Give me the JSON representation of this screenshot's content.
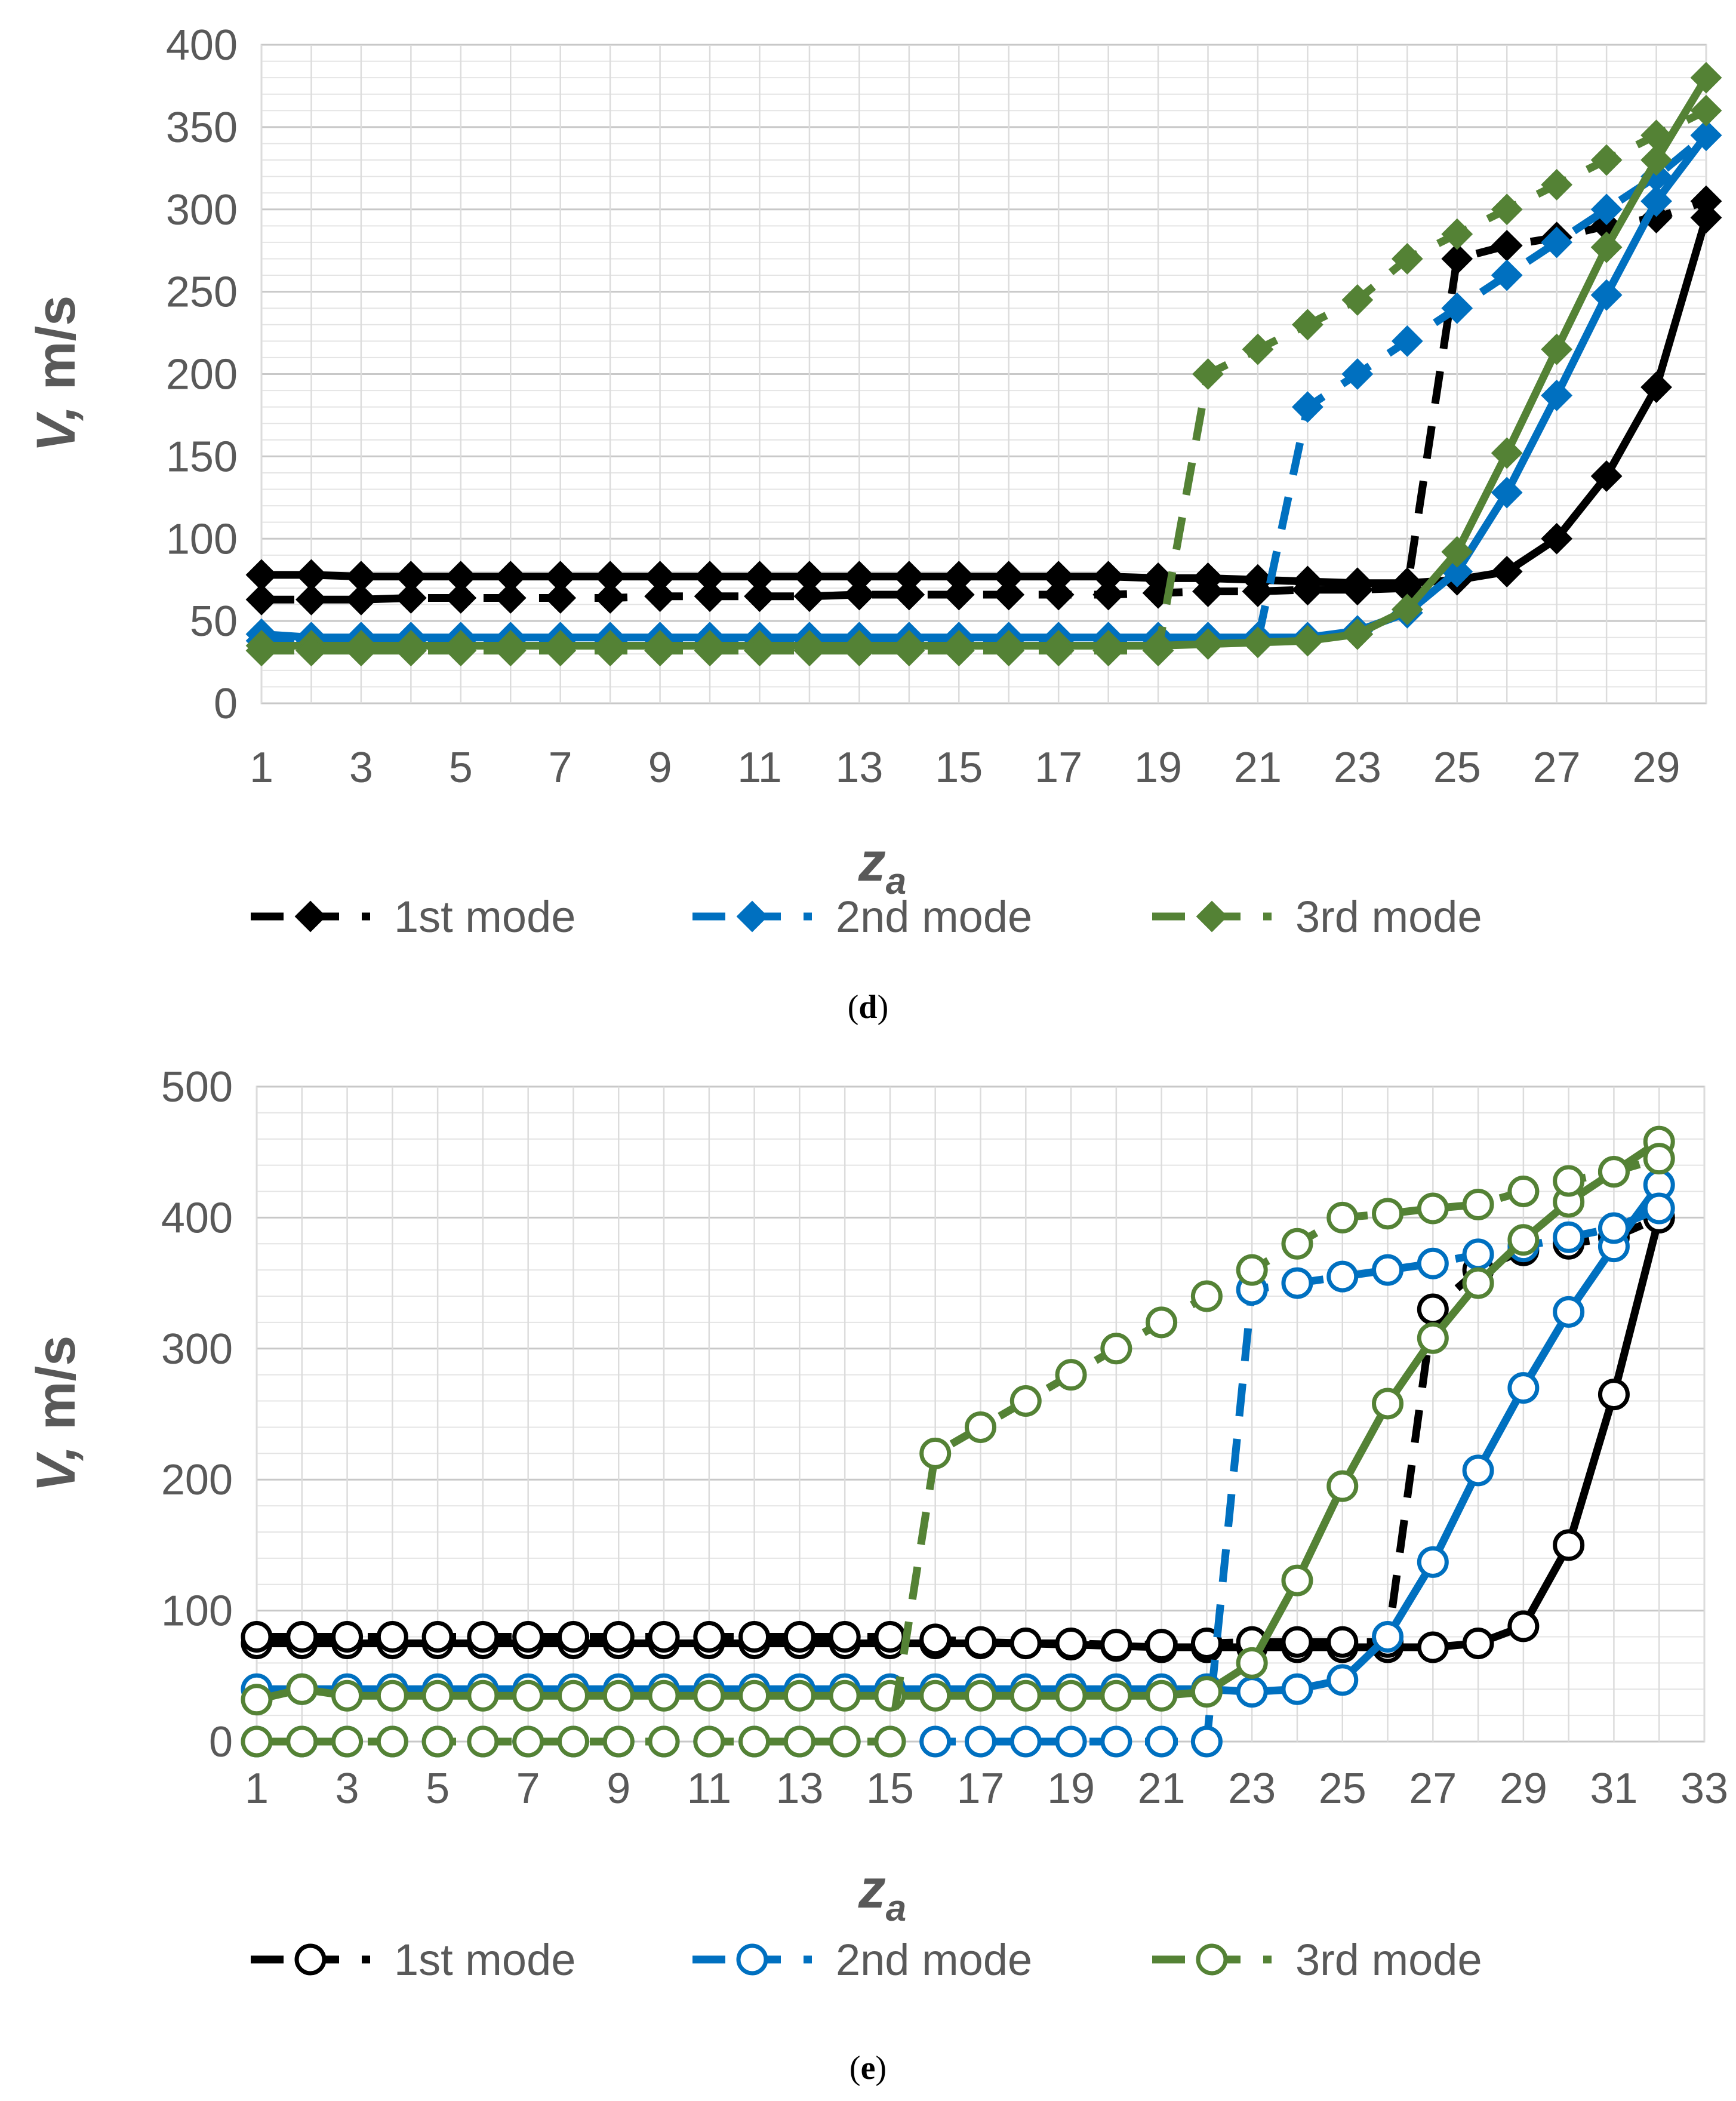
{
  "chart_data": [
    {
      "type": "line",
      "caption": "(d)",
      "xlabel": "z",
      "xlabel_sub": "a",
      "ylabel": "V, m/s",
      "xlim": [
        1,
        30
      ],
      "ylim": [
        0,
        400
      ],
      "ytick_step": 50,
      "xtick_labels": [
        "1",
        "3",
        "5",
        "7",
        "9",
        "11",
        "13",
        "15",
        "17",
        "19",
        "21",
        "23",
        "25",
        "27",
        "29"
      ],
      "marker": "diamond",
      "legend": [
        "1st mode",
        "2nd mode",
        "3rd mode"
      ],
      "series": [
        {
          "name": "1st mode",
          "mode": "1st mode",
          "style": "solid",
          "color": "#000000",
          "x": [
            1,
            2,
            3,
            4,
            5,
            6,
            7,
            8,
            9,
            10,
            11,
            12,
            13,
            14,
            15,
            16,
            17,
            18,
            19,
            20,
            21,
            22,
            23,
            24,
            25,
            26,
            27,
            28,
            29,
            30
          ],
          "y": [
            78,
            78,
            77,
            77,
            77,
            77,
            77,
            77,
            77,
            77,
            77,
            77,
            77,
            77,
            77,
            77,
            77,
            77,
            76,
            76,
            75,
            74,
            73,
            73,
            75,
            80,
            100,
            138,
            192,
            295
          ]
        },
        {
          "name": "1st mode",
          "mode": "1st mode",
          "style": "dashed",
          "color": "#000000",
          "x": [
            1,
            2,
            3,
            4,
            5,
            6,
            7,
            8,
            9,
            10,
            11,
            12,
            13,
            14,
            15,
            16,
            17,
            18,
            19,
            20,
            21,
            22,
            23,
            24,
            25,
            26,
            27,
            28,
            29,
            30
          ],
          "y": [
            63,
            63,
            63,
            64,
            64,
            64,
            64,
            64,
            65,
            65,
            65,
            65,
            66,
            66,
            66,
            66,
            66,
            66,
            67,
            68,
            68,
            69,
            69,
            70,
            270,
            278,
            283,
            290,
            295,
            305
          ]
        },
        {
          "name": "2nd mode",
          "mode": "2nd mode",
          "style": "solid",
          "color": "#0070C0",
          "x": [
            1,
            2,
            3,
            4,
            5,
            6,
            7,
            8,
            9,
            10,
            11,
            12,
            13,
            14,
            15,
            16,
            17,
            18,
            19,
            20,
            21,
            22,
            23,
            24,
            25,
            26,
            27,
            28,
            29,
            30
          ],
          "y": [
            42,
            40,
            40,
            40,
            40,
            40,
            40,
            40,
            40,
            40,
            40,
            40,
            40,
            40,
            40,
            40,
            40,
            40,
            40,
            40,
            40,
            40,
            44,
            55,
            80,
            128,
            187,
            248,
            305,
            345
          ]
        },
        {
          "name": "2nd mode",
          "mode": "2nd mode",
          "style": "dashed",
          "color": "#0070C0",
          "x": [
            1,
            2,
            3,
            4,
            5,
            6,
            7,
            8,
            9,
            10,
            11,
            12,
            13,
            14,
            15,
            16,
            17,
            18,
            19,
            20,
            21,
            22,
            23,
            24,
            25,
            26,
            27,
            28,
            29,
            30
          ],
          "y": [
            38,
            38,
            38,
            38,
            38,
            38,
            38,
            38,
            38,
            38,
            38,
            38,
            38,
            38,
            38,
            38,
            38,
            38,
            38,
            38,
            38,
            180,
            200,
            220,
            240,
            260,
            280,
            300,
            320,
            345
          ]
        },
        {
          "name": "3rd mode",
          "mode": "3rd mode",
          "style": "solid",
          "color": "#548235",
          "x": [
            1,
            2,
            3,
            4,
            5,
            6,
            7,
            8,
            9,
            10,
            11,
            12,
            13,
            14,
            15,
            16,
            17,
            18,
            19,
            20,
            21,
            22,
            23,
            24,
            25,
            26,
            27,
            28,
            29,
            30
          ],
          "y": [
            35,
            35,
            35,
            35,
            35,
            35,
            35,
            35,
            35,
            35,
            35,
            35,
            35,
            35,
            35,
            35,
            35,
            35,
            35,
            36,
            37,
            38,
            42,
            57,
            92,
            152,
            215,
            277,
            330,
            380
          ]
        },
        {
          "name": "3rd mode",
          "mode": "3rd mode",
          "style": "dashed",
          "color": "#548235",
          "x": [
            1,
            2,
            3,
            4,
            5,
            6,
            7,
            8,
            9,
            10,
            11,
            12,
            13,
            14,
            15,
            16,
            17,
            18,
            19,
            20,
            21,
            22,
            23,
            24,
            25,
            26,
            27,
            28,
            29,
            30
          ],
          "y": [
            32,
            32,
            32,
            32,
            32,
            32,
            32,
            32,
            32,
            32,
            32,
            32,
            32,
            32,
            32,
            32,
            32,
            32,
            32,
            200,
            215,
            230,
            245,
            270,
            285,
            300,
            315,
            330,
            345,
            360
          ]
        }
      ]
    },
    {
      "type": "line",
      "caption": "(e)",
      "xlabel": "z",
      "xlabel_sub": "a",
      "ylabel": "V, m/s",
      "xlim": [
        1,
        33
      ],
      "ylim": [
        0,
        500
      ],
      "ytick_step": 100,
      "xtick_labels": [
        "1",
        "3",
        "5",
        "7",
        "9",
        "11",
        "13",
        "15",
        "17",
        "19",
        "21",
        "23",
        "25",
        "27",
        "29",
        "31",
        "33"
      ],
      "marker": "circle",
      "legend": [
        "1st mode",
        "2nd mode",
        "3rd mode"
      ],
      "series": [
        {
          "name": "1st mode",
          "mode": "1st mode",
          "style": "solid",
          "color": "#000000",
          "x": [
            1,
            2,
            3,
            4,
            5,
            6,
            7,
            8,
            9,
            10,
            11,
            12,
            13,
            14,
            15,
            16,
            17,
            18,
            19,
            20,
            21,
            22,
            23,
            24,
            25,
            26,
            27,
            28,
            29,
            30,
            31,
            32
          ],
          "y": [
            75,
            75,
            75,
            75,
            75,
            75,
            75,
            75,
            75,
            75,
            75,
            75,
            75,
            75,
            75,
            75,
            75,
            75,
            74,
            73,
            72,
            72,
            72,
            72,
            72,
            72,
            72,
            75,
            88,
            150,
            265,
            400
          ]
        },
        {
          "name": "1st mode",
          "mode": "1st mode",
          "style": "dashed",
          "color": "#000000",
          "x": [
            1,
            2,
            3,
            4,
            5,
            6,
            7,
            8,
            9,
            10,
            11,
            12,
            13,
            14,
            15,
            16,
            17,
            18,
            19,
            20,
            21,
            22,
            23,
            24,
            25,
            26,
            27,
            28,
            29,
            30,
            31,
            32
          ],
          "y": [
            80,
            80,
            80,
            80,
            80,
            80,
            80,
            80,
            80,
            80,
            80,
            80,
            80,
            80,
            80,
            78,
            76,
            75,
            75,
            74,
            74,
            75,
            76,
            76,
            76,
            76,
            330,
            360,
            375,
            380,
            385,
            400
          ]
        },
        {
          "name": "2nd mode",
          "mode": "2nd mode",
          "style": "solid",
          "color": "#0070C0",
          "x": [
            1,
            2,
            3,
            4,
            5,
            6,
            7,
            8,
            9,
            10,
            11,
            12,
            13,
            14,
            15,
            16,
            17,
            18,
            19,
            20,
            21,
            22,
            23,
            24,
            25,
            26,
            27,
            28,
            29,
            30,
            31,
            32
          ],
          "y": [
            40,
            40,
            40,
            40,
            40,
            40,
            40,
            40,
            40,
            40,
            40,
            40,
            40,
            40,
            40,
            40,
            40,
            40,
            40,
            40,
            40,
            40,
            38,
            40,
            47,
            80,
            137,
            207,
            270,
            328,
            378,
            425
          ]
        },
        {
          "name": "2nd mode",
          "mode": "2nd mode",
          "style": "dashed",
          "color": "#0070C0",
          "x": [
            1,
            2,
            3,
            4,
            5,
            6,
            7,
            8,
            9,
            10,
            11,
            12,
            13,
            14,
            15,
            16,
            17,
            18,
            19,
            20,
            21,
            22,
            23,
            24,
            25,
            26,
            27,
            28,
            29,
            30,
            31,
            32
          ],
          "y": [
            0,
            0,
            0,
            0,
            0,
            0,
            0,
            0,
            0,
            0,
            0,
            0,
            0,
            0,
            0,
            0,
            0,
            0,
            0,
            0,
            0,
            0,
            345,
            350,
            355,
            360,
            365,
            372,
            378,
            385,
            392,
            407
          ]
        },
        {
          "name": "3rd mode",
          "mode": "3rd mode",
          "style": "solid",
          "color": "#548235",
          "x": [
            1,
            2,
            3,
            4,
            5,
            6,
            7,
            8,
            9,
            10,
            11,
            12,
            13,
            14,
            15,
            16,
            17,
            18,
            19,
            20,
            21,
            22,
            23,
            24,
            25,
            26,
            27,
            28,
            29,
            30,
            31,
            32
          ],
          "y": [
            32,
            40,
            35,
            35,
            35,
            35,
            35,
            35,
            35,
            35,
            35,
            35,
            35,
            35,
            35,
            35,
            35,
            35,
            35,
            35,
            35,
            38,
            60,
            123,
            195,
            258,
            308,
            350,
            383,
            412,
            435,
            458
          ]
        },
        {
          "name": "3rd mode",
          "mode": "3rd mode",
          "style": "dashed",
          "color": "#548235",
          "x": [
            1,
            2,
            3,
            4,
            5,
            6,
            7,
            8,
            9,
            10,
            11,
            12,
            13,
            14,
            15,
            16,
            17,
            18,
            19,
            20,
            21,
            22,
            23,
            24,
            25,
            26,
            27,
            28,
            29,
            30,
            31,
            32
          ],
          "y": [
            0,
            0,
            0,
            0,
            0,
            0,
            0,
            0,
            0,
            0,
            0,
            0,
            0,
            0,
            0,
            220,
            240,
            260,
            280,
            300,
            320,
            340,
            360,
            380,
            400,
            403,
            407,
            410,
            420,
            428,
            435,
            445
          ]
        }
      ]
    }
  ]
}
